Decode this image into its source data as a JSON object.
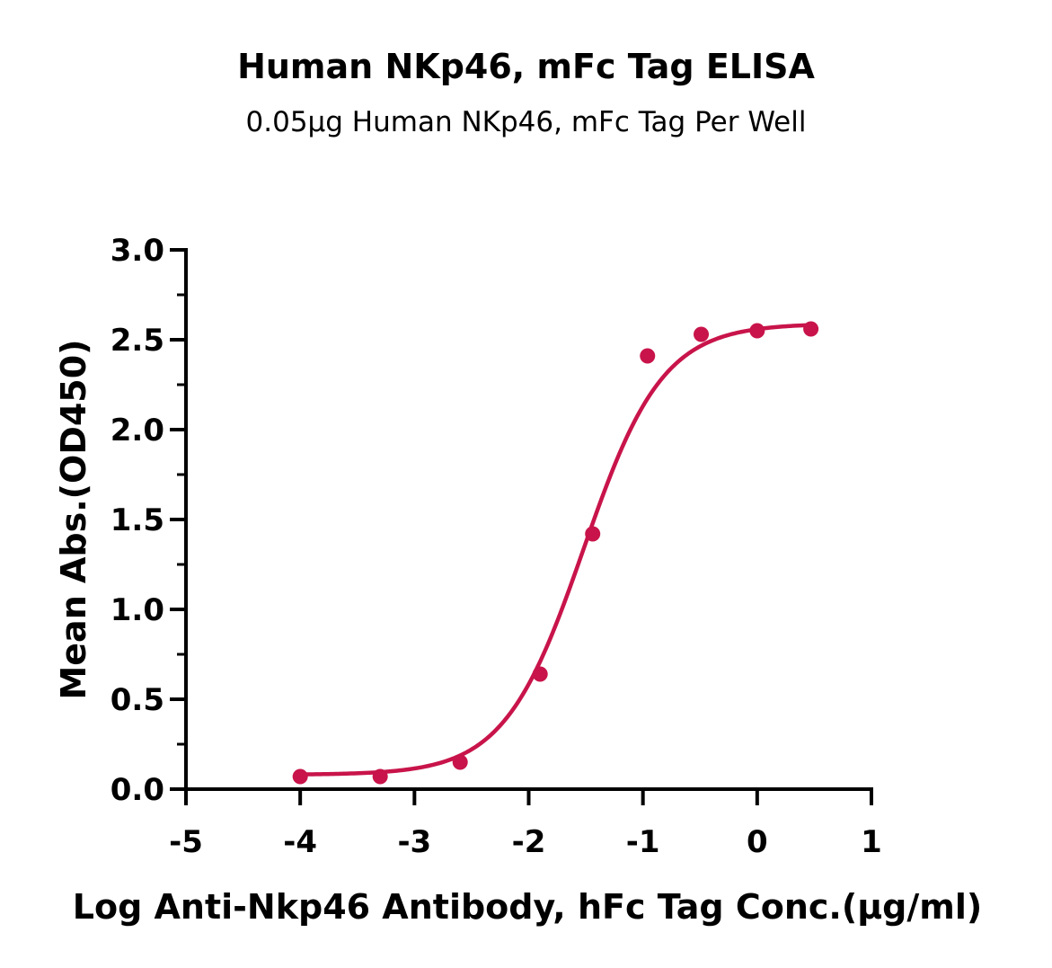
{
  "chart_data": {
    "type": "scatter",
    "title": "Human NKp46, mFc Tag ELISA",
    "subtitle": "0.05μg Human NKp46, mFc Tag Per Well",
    "xlabel": "Log Anti-Nkp46 Antibody, hFc Tag Conc.(μg/ml)",
    "ylabel": "Mean Abs.(OD450)",
    "xlim": [
      -5,
      1
    ],
    "ylim": [
      0,
      3.0
    ],
    "x_ticks": [
      "-5",
      "-4",
      "-3",
      "-2",
      "-1",
      "0",
      "1"
    ],
    "y_ticks": [
      "0.0",
      "0.5",
      "1.0",
      "1.5",
      "2.0",
      "2.5",
      "3.0"
    ],
    "grid": false,
    "legend": "none",
    "series": [
      {
        "color": "#c8144a",
        "x": [
          -4.0,
          -3.3,
          -2.6,
          -1.9,
          -1.44,
          -0.96,
          -0.49,
          0.0,
          0.47
        ],
        "y": [
          0.07,
          0.07,
          0.15,
          0.64,
          1.42,
          2.41,
          2.53,
          2.55,
          2.56
        ]
      }
    ],
    "fit_curve": {
      "type": "4PL sigmoid",
      "bottom": 0.08,
      "top": 2.59,
      "logEC50": -1.52,
      "hill": 1.25,
      "color": "#c8144a"
    }
  }
}
